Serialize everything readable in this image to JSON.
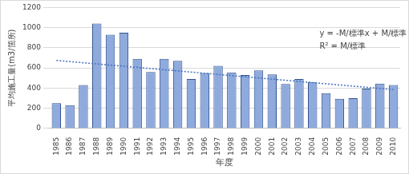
{
  "chart_data": {
    "type": "bar",
    "x_label": "年度",
    "y_label": "平均施工量(m3/箇所)",
    "categories": [
      "1985",
      "1986",
      "1987",
      "1988",
      "1989",
      "1990",
      "1991",
      "1992",
      "1993",
      "1994",
      "1995",
      "1996",
      "1997",
      "1998",
      "1999",
      "2000",
      "2001",
      "2002",
      "2003",
      "2004",
      "2005",
      "2006",
      "2007",
      "2008",
      "2009",
      "2010"
    ],
    "values": [
      250,
      230,
      430,
      1040,
      930,
      950,
      690,
      560,
      690,
      670,
      490,
      550,
      620,
      555,
      530,
      575,
      535,
      440,
      490,
      460,
      350,
      295,
      300,
      395,
      445,
      430
    ],
    "color": "#8faadc",
    "trend_line": {
      "values": [
        675,
        null,
        null,
        null,
        null,
        null,
        null,
        null,
        null,
        null,
        null,
        null,
        null,
        null,
        null,
        null,
        null,
        null,
        null,
        null,
        null,
        null,
        null,
        null,
        null,
        385
      ],
      "color": "#4472c4",
      "line_style": "dotted"
    },
    "annotations": [
      "y = -M/標準x + M/標準",
      "R² = M/標準"
    ],
    "ylim": [
      0,
      1200
    ],
    "yticks": [
      0,
      200,
      400,
      600,
      800,
      1000,
      1200
    ],
    "grid": true
  }
}
